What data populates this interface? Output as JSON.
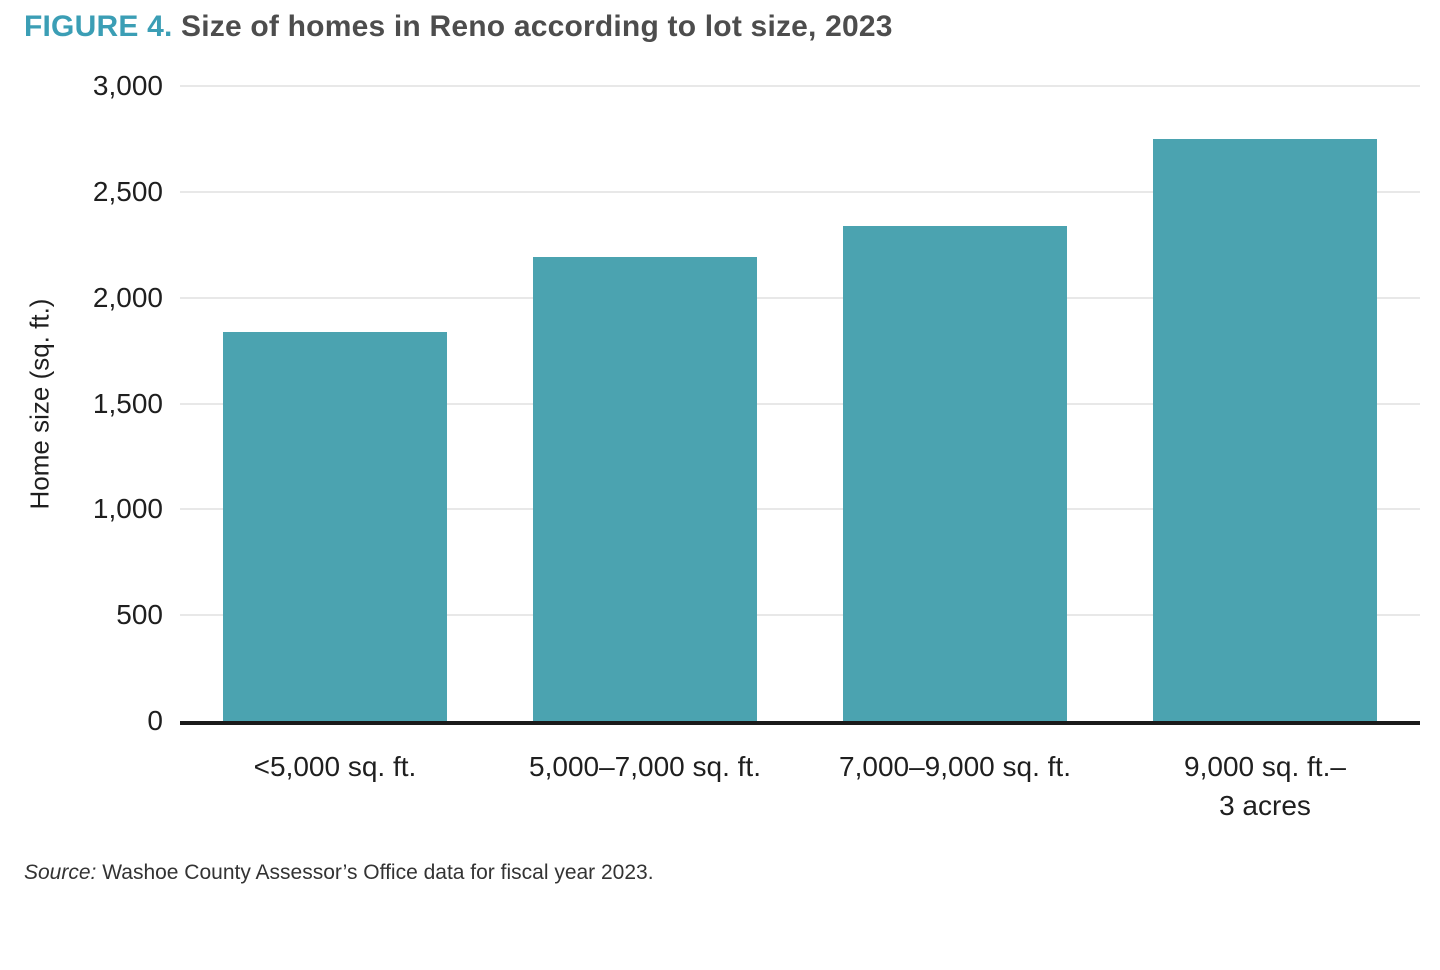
{
  "figure": {
    "label": "FIGURE 4.",
    "title": "Size of homes in Reno according to lot size, 2023"
  },
  "source": {
    "label": "Source:",
    "text": "Washoe County Assessor’s Office data for fiscal year 2023."
  },
  "chart_data": {
    "type": "bar",
    "title": "Size of homes in Reno according to lot size, 2023",
    "categories": [
      "<5,000 sq. ft.",
      "5,000–7,000 sq. ft.",
      "7,000–9,000 sq. ft.",
      "9,000 sq. ft.–\n3 acres"
    ],
    "values": [
      1840,
      2190,
      2340,
      2750
    ],
    "xlabel": "",
    "ylabel": "Home size (sq. ft.)",
    "ylim": [
      0,
      3000
    ],
    "yticks": [
      0,
      500,
      1000,
      1500,
      2000,
      2500,
      3000
    ],
    "ytick_labels": [
      "0",
      "500",
      "1,000",
      "1,500",
      "2,000",
      "2,500",
      "3,000"
    ],
    "grid": true,
    "legend": false,
    "bar_color": "#4BA3B0",
    "bar_width_frac": 0.72
  },
  "colors": {
    "accent": "#3B9EB5",
    "bar": "#4BA3B0",
    "title_text": "#4D4D4D",
    "axis_text": "#1F1F1F",
    "gridline": "#E8E8E8",
    "axis_line": "#1A1A1A",
    "source_text": "#333333",
    "background": "#FFFFFF"
  }
}
